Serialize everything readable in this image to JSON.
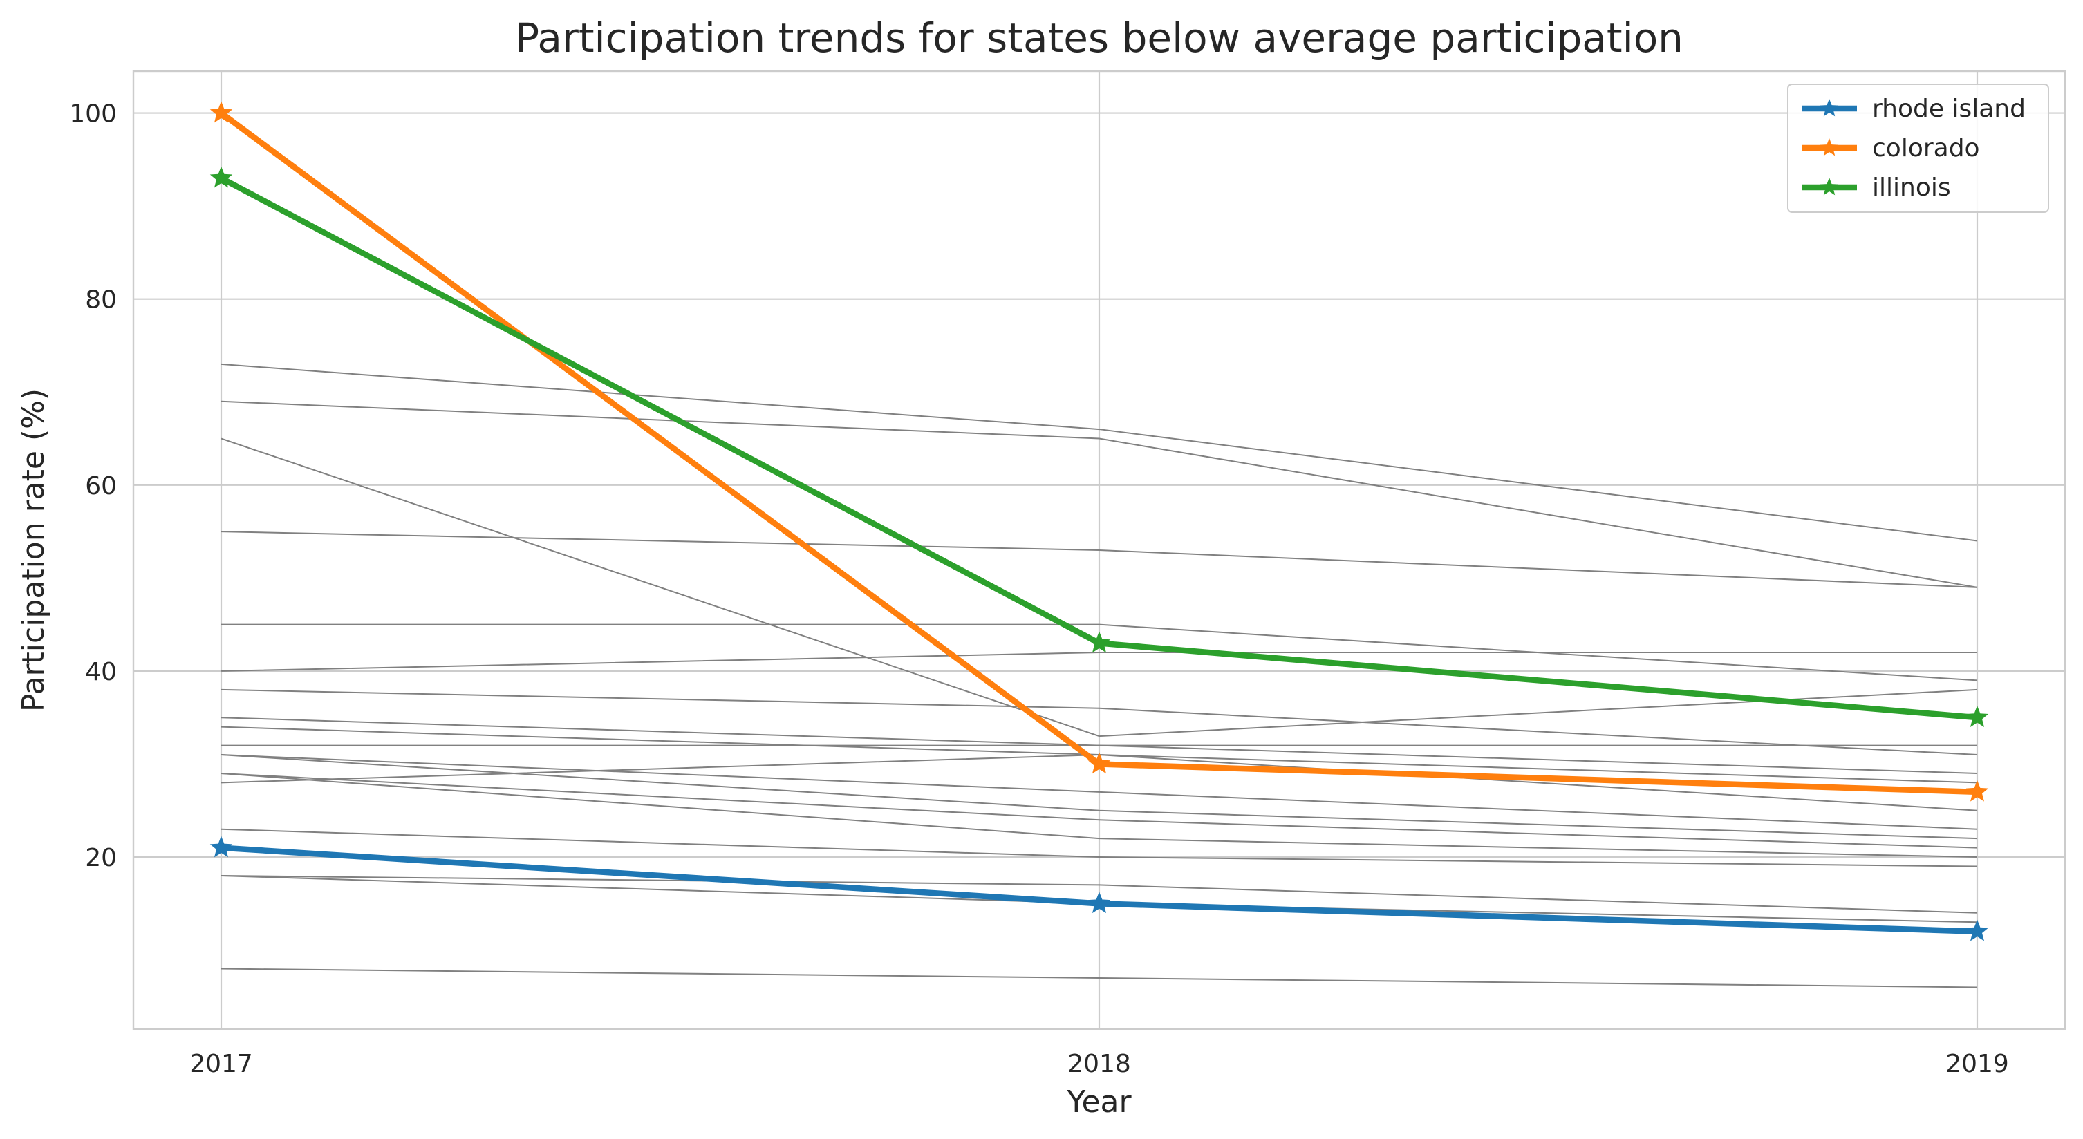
{
  "chart_data": {
    "type": "line",
    "title": "Participation trends for states below average participation",
    "xlabel": "Year",
    "ylabel": "Participation rate (%)",
    "x": [
      2017,
      2018,
      2019
    ],
    "x_tick_labels": [
      "2017",
      "2018",
      "2019"
    ],
    "y_ticks": [
      20,
      40,
      60,
      80,
      100
    ],
    "y_tick_labels": [
      "20",
      "40",
      "60",
      "80",
      "100"
    ],
    "xlim": [
      2016.9,
      2019.1
    ],
    "ylim": [
      1.5,
      104.5
    ],
    "grid": true,
    "legend_position": "top-right",
    "highlighted_series": [
      {
        "name": "rhode island",
        "values": [
          21,
          15,
          12
        ],
        "color": "#1f77b4"
      },
      {
        "name": "colorado",
        "values": [
          100,
          30,
          27
        ],
        "color": "#ff7f0e"
      },
      {
        "name": "illinois",
        "values": [
          93,
          43,
          35
        ],
        "color": "#2ca02c"
      }
    ],
    "background_series": [
      {
        "values": [
          73,
          66,
          54
        ]
      },
      {
        "values": [
          69,
          65,
          49
        ]
      },
      {
        "values": [
          65,
          33,
          38
        ]
      },
      {
        "values": [
          55,
          53,
          49
        ]
      },
      {
        "values": [
          45,
          45,
          39
        ]
      },
      {
        "values": [
          40,
          42,
          42
        ]
      },
      {
        "values": [
          38,
          36,
          31
        ]
      },
      {
        "values": [
          35,
          32,
          29
        ]
      },
      {
        "values": [
          34,
          31,
          25
        ]
      },
      {
        "values": [
          32,
          32,
          32
        ]
      },
      {
        "values": [
          31,
          27,
          23
        ]
      },
      {
        "values": [
          31,
          25,
          22
        ]
      },
      {
        "values": [
          29,
          24,
          21
        ]
      },
      {
        "values": [
          29,
          22,
          20
        ]
      },
      {
        "values": [
          28,
          31,
          28
        ]
      },
      {
        "values": [
          23,
          20,
          19
        ]
      },
      {
        "values": [
          18,
          17,
          14
        ]
      },
      {
        "values": [
          18,
          15,
          13
        ]
      },
      {
        "values": [
          8,
          7,
          6
        ]
      }
    ],
    "background_color": "#808080"
  }
}
